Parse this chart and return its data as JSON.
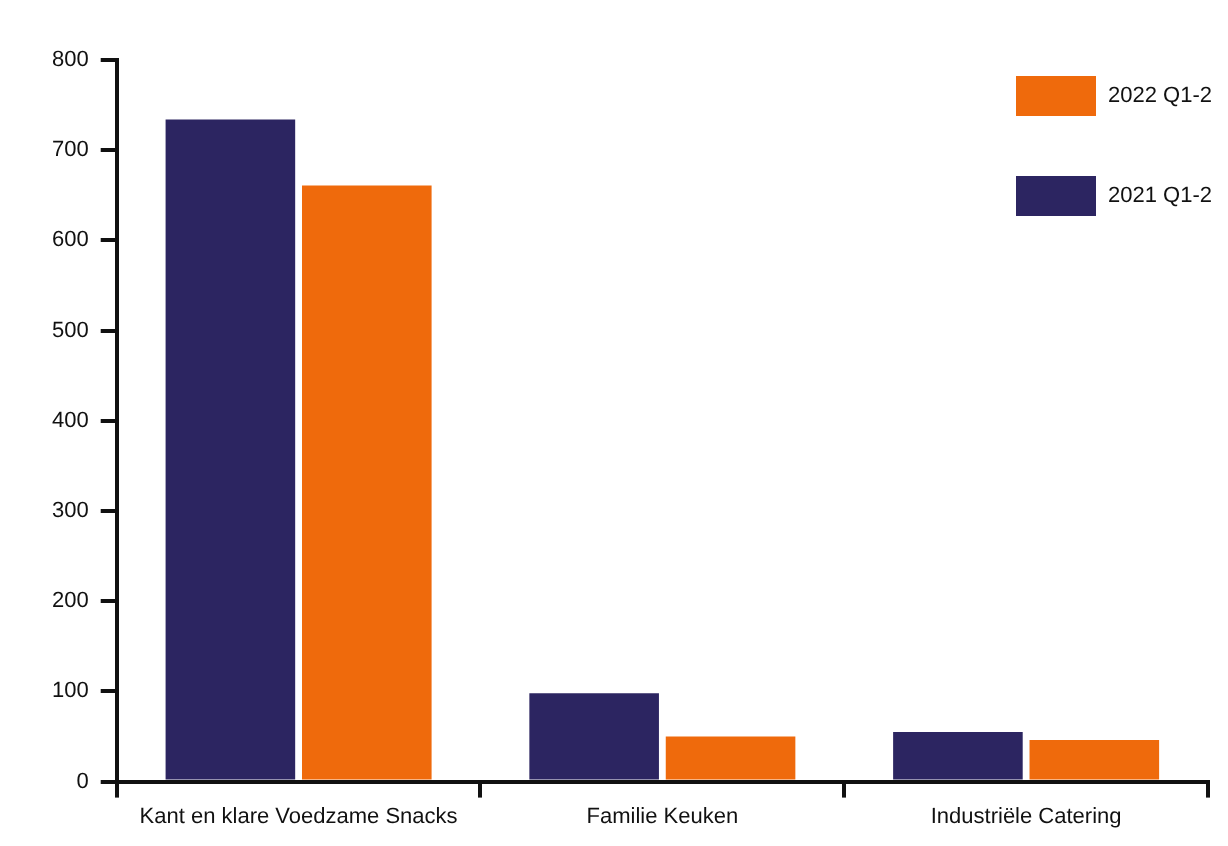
{
  "chart_data": {
    "type": "bar",
    "categories": [
      "Kant en klare Voedzame Snacks",
      "Familie Keuken",
      "Industriële Catering"
    ],
    "series": [
      {
        "name": "2021 Q1-2",
        "color": "#2c2561",
        "values": [
          734,
          98,
          55
        ]
      },
      {
        "name": "2022 Q1-2",
        "color": "#ef6a0c",
        "values": [
          661,
          50,
          46
        ]
      }
    ],
    "ylim": [
      0,
      800
    ],
    "yticks": [
      0,
      100,
      200,
      300,
      400,
      500,
      600,
      700,
      800
    ],
    "grid": false,
    "legend": "top right"
  }
}
